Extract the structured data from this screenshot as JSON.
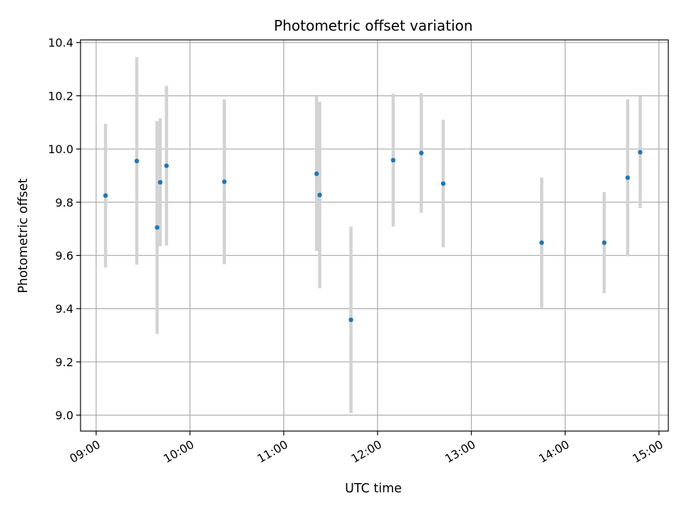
{
  "chart_data": {
    "type": "scatter",
    "title": "Photometric offset variation",
    "xlabel": "UTC time",
    "ylabel": "Photometric offset",
    "x_ticks": [
      "09:00",
      "10:00",
      "11:00",
      "12:00",
      "13:00",
      "14:00",
      "15:00"
    ],
    "y_ticks": [
      "9.0",
      "9.2",
      "9.4",
      "9.6",
      "9.8",
      "10.0",
      "10.2",
      "10.4"
    ],
    "xlim": [
      "08:50",
      "15:06"
    ],
    "ylim": [
      8.94,
      10.41
    ],
    "grid": true,
    "colors": {
      "points": "#1f77b4",
      "errorbars": "#d3d3d3",
      "grid": "#b0b0b0"
    },
    "points": [
      {
        "time": "09:06",
        "y": 9.825,
        "yerr": 0.27
      },
      {
        "time": "09:26",
        "y": 9.955,
        "yerr": 0.39
      },
      {
        "time": "09:39",
        "y": 9.705,
        "yerr": 0.4
      },
      {
        "time": "09:41",
        "y": 9.875,
        "yerr": 0.24
      },
      {
        "time": "09:45",
        "y": 9.937,
        "yerr": 0.3
      },
      {
        "time": "10:22",
        "y": 9.877,
        "yerr": 0.31
      },
      {
        "time": "11:21",
        "y": 9.907,
        "yerr": 0.29
      },
      {
        "time": "11:23",
        "y": 9.827,
        "yerr": 0.35
      },
      {
        "time": "11:43",
        "y": 9.358,
        "yerr": 0.35
      },
      {
        "time": "12:10",
        "y": 9.958,
        "yerr": 0.25
      },
      {
        "time": "12:28",
        "y": 9.985,
        "yerr": 0.225
      },
      {
        "time": "12:42",
        "y": 9.87,
        "yerr": 0.24
      },
      {
        "time": "13:45",
        "y": 9.648,
        "yerr": 0.245
      },
      {
        "time": "14:25",
        "y": 9.648,
        "yerr": 0.19
      },
      {
        "time": "14:40",
        "y": 9.892,
        "yerr": 0.295
      },
      {
        "time": "14:48",
        "y": 9.988,
        "yerr": 0.21
      }
    ]
  }
}
